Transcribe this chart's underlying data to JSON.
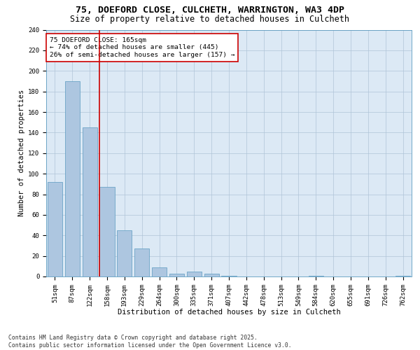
{
  "title1": "75, DOEFORD CLOSE, CULCHETH, WARRINGTON, WA3 4DP",
  "title2": "Size of property relative to detached houses in Culcheth",
  "xlabel": "Distribution of detached houses by size in Culcheth",
  "ylabel": "Number of detached properties",
  "categories": [
    "51sqm",
    "87sqm",
    "122sqm",
    "158sqm",
    "193sqm",
    "229sqm",
    "264sqm",
    "300sqm",
    "335sqm",
    "371sqm",
    "407sqm",
    "442sqm",
    "478sqm",
    "513sqm",
    "549sqm",
    "584sqm",
    "620sqm",
    "655sqm",
    "691sqm",
    "726sqm",
    "762sqm"
  ],
  "values": [
    92,
    190,
    145,
    87,
    45,
    27,
    9,
    3,
    5,
    3,
    1,
    0,
    0,
    0,
    0,
    1,
    0,
    0,
    0,
    0,
    1
  ],
  "bar_color": "#adc6e0",
  "bar_edgecolor": "#5a9abf",
  "vline_index": 3,
  "vline_color": "#cc0000",
  "annotation_text": "75 DOEFORD CLOSE: 165sqm\n← 74% of detached houses are smaller (445)\n26% of semi-detached houses are larger (157) →",
  "annotation_box_color": "#ffffff",
  "annotation_box_edgecolor": "#cc0000",
  "ylim": [
    0,
    240
  ],
  "yticks": [
    0,
    20,
    40,
    60,
    80,
    100,
    120,
    140,
    160,
    180,
    200,
    220,
    240
  ],
  "plot_background": "#dce9f5",
  "footer": "Contains HM Land Registry data © Crown copyright and database right 2025.\nContains public sector information licensed under the Open Government Licence v3.0.",
  "title_fontsize": 9.5,
  "subtitle_fontsize": 8.5,
  "axis_label_fontsize": 7.5,
  "tick_fontsize": 6.5,
  "annotation_fontsize": 6.8,
  "footer_fontsize": 5.8
}
